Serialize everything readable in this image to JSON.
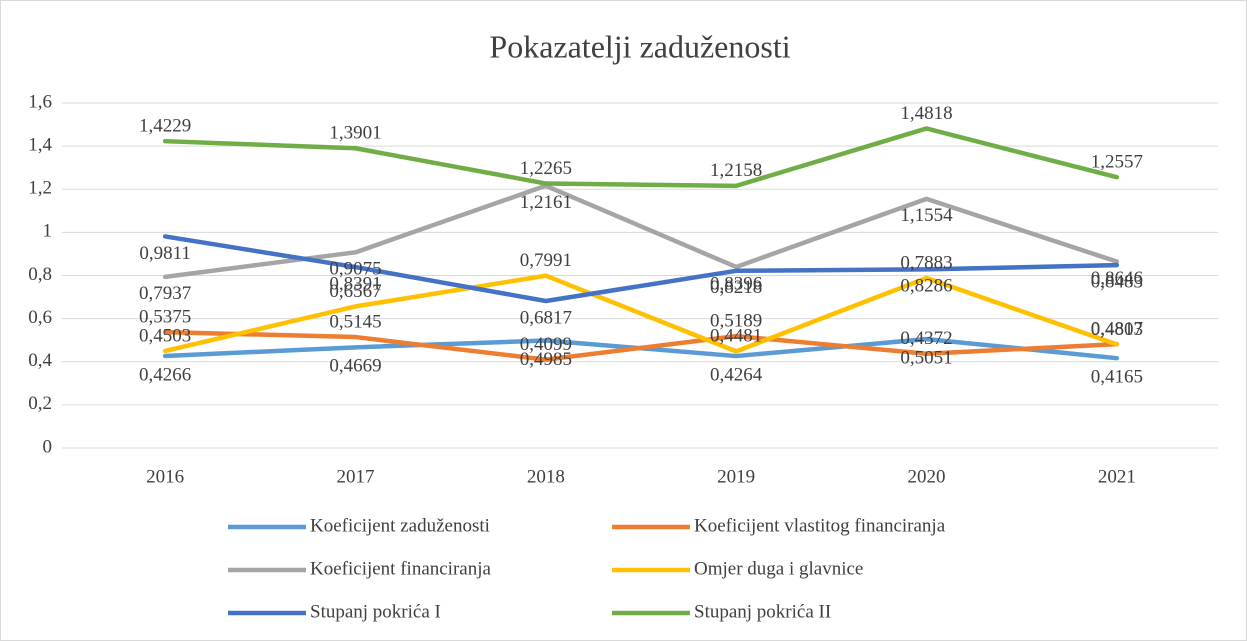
{
  "chart_data": {
    "type": "line",
    "title": "Pokazatelji zaduženosti",
    "categories": [
      "2016",
      "2017",
      "2018",
      "2019",
      "2020",
      "2021"
    ],
    "ylim": [
      0,
      1.6
    ],
    "yticks": [
      0,
      {
        "value": 0.2,
        "label": "0,2"
      },
      {
        "value": 0.4,
        "label": "0,4"
      },
      {
        "value": 0.6,
        "label": "0,6"
      },
      {
        "value": 0.8,
        "label": "0,8"
      },
      1,
      {
        "value": 1.2,
        "label": "1,2"
      },
      {
        "value": 1.4,
        "label": "1,4"
      },
      {
        "value": 1.6,
        "label": "1,6"
      }
    ],
    "grid": true,
    "legend": "bottom",
    "series": [
      {
        "name": "Koeficijent zaduženosti",
        "color": "#5b9bd5",
        "values": [
          0.4266,
          0.4669,
          0.4985,
          0.4264,
          0.5051,
          0.4165
        ],
        "value_labels": [
          "0,4266",
          "0,4669",
          "0,4985",
          "0,4264",
          "0,5051",
          "0,4165"
        ]
      },
      {
        "name": "Koeficijent vlastitog financiranja",
        "color": "#ed7d31",
        "values": [
          0.5375,
          0.5145,
          0.4099,
          0.5189,
          0.4372,
          0.4817
        ],
        "value_labels": [
          "0,5375",
          "0,5145",
          "0,4099",
          "0,5189",
          "0,4372",
          "0,4817"
        ]
      },
      {
        "name": "Koeficijent financiranja",
        "color": "#a5a5a5",
        "values": [
          0.7937,
          0.9075,
          1.2161,
          0.8396,
          1.1554,
          0.8646
        ],
        "value_labels": [
          "0,7937",
          "0,9075",
          "1,2161",
          "0,8396",
          "1,1554",
          "0,8646"
        ]
      },
      {
        "name": "Omjer duga i glavnice",
        "color": "#ffc000",
        "values": [
          0.4503,
          0.6567,
          0.7991,
          0.4481,
          0.7883,
          0.4803
        ],
        "value_labels": [
          "0,4503",
          "0,6567",
          "0,7991",
          "0,4481",
          "0,7883",
          "0,4803"
        ]
      },
      {
        "name": "Stupanj pokrića I",
        "color": "#4472c4",
        "values": [
          0.9811,
          0.8391,
          0.6817,
          0.8218,
          0.8286,
          0.8483
        ],
        "value_labels": [
          "0,9811",
          "0,8391",
          "0,6817",
          "0,8218",
          "0,8286",
          "0,8483"
        ]
      },
      {
        "name": "Stupanj pokrića II",
        "color": "#70ad47",
        "values": [
          1.4229,
          1.3901,
          1.2265,
          1.2158,
          1.4818,
          1.2557
        ],
        "value_labels": [
          "1,4229",
          "1,3901",
          "1,2265",
          "1,2158",
          "1,4818",
          "1,2557"
        ]
      }
    ]
  }
}
